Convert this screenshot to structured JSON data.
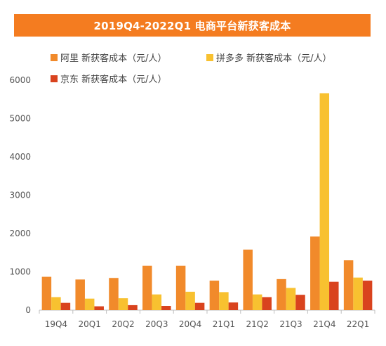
{
  "title": "2019Q4-2022Q1 电商平台新获客成本",
  "colors": {
    "title_bg": "#f47c20",
    "alibaba": "#f18a2b",
    "pdd": "#f8c130",
    "jd": "#d9431e"
  },
  "chart_data": {
    "type": "bar",
    "title": "2019Q4-2022Q1 电商平台新获客成本",
    "categories": [
      "19Q4",
      "20Q1",
      "20Q2",
      "20Q3",
      "20Q4",
      "21Q1",
      "21Q2",
      "21Q3",
      "21Q4",
      "22Q1"
    ],
    "series": [
      {
        "name": "阿里 新获客成本（元/人）",
        "color": "#f18a2b",
        "values": [
          870,
          800,
          840,
          1160,
          1160,
          770,
          1580,
          810,
          1920,
          1300
        ]
      },
      {
        "name": "拼多多 新获客成本（元/人）",
        "color": "#f8c130",
        "values": [
          340,
          300,
          310,
          410,
          480,
          470,
          410,
          580,
          5660,
          850
        ]
      },
      {
        "name": "京东 新获客成本（元/人）",
        "color": "#d9431e",
        "values": [
          190,
          100,
          130,
          110,
          190,
          200,
          340,
          400,
          740,
          770
        ]
      }
    ],
    "ylim": [
      0,
      6000
    ],
    "yticks": [
      0,
      1000,
      2000,
      3000,
      4000,
      5000,
      6000
    ],
    "grid": false,
    "legend_position": "top"
  }
}
